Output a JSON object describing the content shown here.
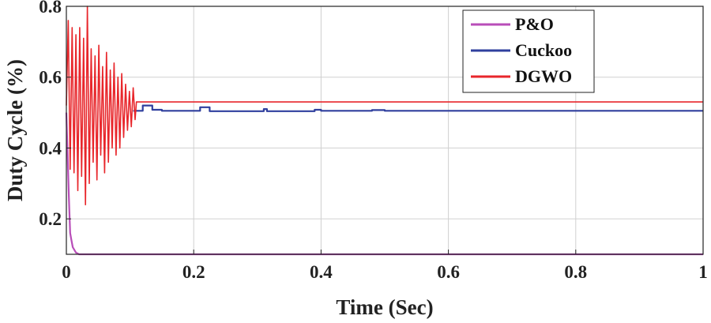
{
  "chart_data": {
    "type": "line",
    "xlabel": "Time (Sec)",
    "ylabel": "Duty Cycle (%)",
    "xlim": [
      0,
      1
    ],
    "ylim": [
      0.1,
      0.8
    ],
    "x_ticks": [
      0,
      0.2,
      0.4,
      0.6,
      0.8,
      1
    ],
    "x_tick_labels": [
      "0",
      "0.2",
      "0.4",
      "0.6",
      "0.8",
      "1"
    ],
    "y_ticks": [
      0.2,
      0.4,
      0.6,
      0.8
    ],
    "y_tick_labels": [
      "0.2",
      "0.4",
      "0.6",
      "0.8"
    ],
    "grid": true,
    "legend_position": "top-right",
    "series": [
      {
        "name": "P&O",
        "color": "#b84db8",
        "x": [
          0,
          0.002,
          0.004,
          0.006,
          0.008,
          0.01,
          0.015,
          0.02,
          0.1,
          0.3,
          0.5,
          0.7,
          0.9,
          1.0
        ],
        "y": [
          0.5,
          0.38,
          0.26,
          0.16,
          0.14,
          0.12,
          0.105,
          0.1,
          0.1,
          0.1,
          0.1,
          0.1,
          0.1,
          0.1
        ]
      },
      {
        "name": "Cuckoo",
        "color": "#2f3f9e",
        "x": [
          0.105,
          0.115,
          0.12,
          0.13,
          0.135,
          0.15,
          0.2,
          0.21,
          0.22,
          0.225,
          0.3,
          0.31,
          0.315,
          0.35,
          0.38,
          0.39,
          0.4,
          0.47,
          0.48,
          0.5,
          0.6,
          0.7,
          0.8,
          0.9,
          1.0
        ],
        "y": [
          0.505,
          0.505,
          0.52,
          0.52,
          0.508,
          0.505,
          0.505,
          0.515,
          0.515,
          0.504,
          0.504,
          0.51,
          0.504,
          0.504,
          0.504,
          0.508,
          0.505,
          0.505,
          0.507,
          0.505,
          0.505,
          0.505,
          0.505,
          0.505,
          0.505
        ]
      },
      {
        "name": "DGWO",
        "color": "#e8262b",
        "x": [
          0.0,
          0.003,
          0.006,
          0.009,
          0.012,
          0.015,
          0.018,
          0.021,
          0.024,
          0.027,
          0.03,
          0.033,
          0.036,
          0.039,
          0.042,
          0.045,
          0.048,
          0.051,
          0.054,
          0.057,
          0.06,
          0.063,
          0.066,
          0.069,
          0.072,
          0.075,
          0.078,
          0.081,
          0.084,
          0.087,
          0.09,
          0.093,
          0.096,
          0.099,
          0.102,
          0.105,
          0.108,
          0.11,
          0.2,
          0.4,
          0.6,
          0.8,
          1.0
        ],
        "y": [
          0.52,
          0.76,
          0.34,
          0.74,
          0.33,
          0.72,
          0.28,
          0.74,
          0.32,
          0.71,
          0.24,
          0.8,
          0.3,
          0.68,
          0.36,
          0.66,
          0.31,
          0.69,
          0.38,
          0.63,
          0.33,
          0.67,
          0.36,
          0.62,
          0.4,
          0.64,
          0.38,
          0.6,
          0.4,
          0.61,
          0.43,
          0.58,
          0.45,
          0.56,
          0.46,
          0.57,
          0.48,
          0.53,
          0.53,
          0.53,
          0.53,
          0.53,
          0.53
        ]
      }
    ]
  }
}
